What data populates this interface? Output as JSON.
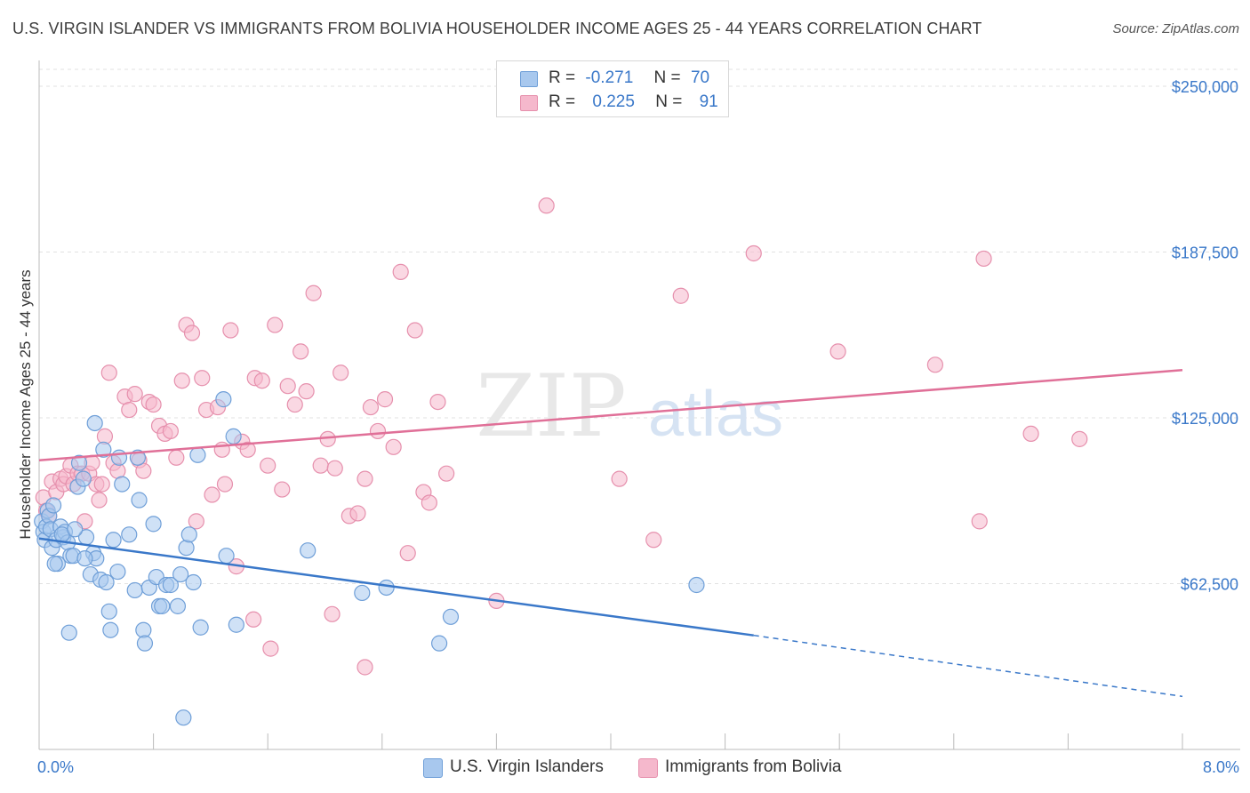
{
  "title": "U.S. VIRGIN ISLANDER VS IMMIGRANTS FROM BOLIVIA HOUSEHOLDER INCOME AGES 25 - 44 YEARS CORRELATION CHART",
  "source": "Source: ZipAtlas.com",
  "watermark": {
    "zip": "ZIP",
    "atlas": "atlas"
  },
  "legend_top": {
    "row1": {
      "r_label": "R =",
      "r_value": "-0.271",
      "n_label": "N =",
      "n_value": "70"
    },
    "row2": {
      "r_label": "R =",
      "r_value": "0.225",
      "n_label": "N =",
      "n_value": "91"
    }
  },
  "legend_bottom": {
    "series1": "U.S. Virgin Islanders",
    "series2": "Immigrants from Bolivia"
  },
  "colors": {
    "blue": "#3a78c9",
    "blue_fill": "#a8c8ee",
    "pink": "#e07098",
    "pink_fill": "#f5b8cc"
  },
  "chart_data": {
    "type": "scatter",
    "title": "U.S. VIRGIN ISLANDER VS IMMIGRANTS FROM BOLIVIA HOUSEHOLDER INCOME AGES 25 - 44 YEARS CORRELATION CHART",
    "xlabel": "",
    "ylabel": "Householder Income Ages 25 - 44 years",
    "xlim": [
      0,
      8.0
    ],
    "ylim": [
      0,
      250000
    ],
    "x_tick_labels": [
      "0.0%",
      "8.0%"
    ],
    "y_ticks": [
      62500,
      125000,
      187500,
      250000
    ],
    "y_tick_labels": [
      "$62,500",
      "$125,000",
      "$187,500",
      "$250,000"
    ],
    "series": [
      {
        "name": "U.S. Virgin Islanders",
        "color": "blue",
        "r": -0.271,
        "n": 70,
        "trend": {
          "x_start": 0.0,
          "y_start": 79500,
          "x_solid_end": 5.0,
          "y_solid_end": 43000,
          "x_end": 8.0,
          "y_end": 20000
        },
        "points": [
          [
            0.02,
            86000
          ],
          [
            0.03,
            82000
          ],
          [
            0.04,
            79000
          ],
          [
            0.05,
            84000
          ],
          [
            0.06,
            90000
          ],
          [
            0.07,
            88000
          ],
          [
            0.08,
            83000
          ],
          [
            0.09,
            76000
          ],
          [
            0.1,
            92000
          ],
          [
            0.12,
            79000
          ],
          [
            0.13,
            70000
          ],
          [
            0.15,
            84000
          ],
          [
            0.17,
            80000
          ],
          [
            0.18,
            82000
          ],
          [
            0.2,
            78000
          ],
          [
            0.22,
            73000
          ],
          [
            0.24,
            73000
          ],
          [
            0.27,
            99000
          ],
          [
            0.28,
            108000
          ],
          [
            0.31,
            102000
          ],
          [
            0.33,
            80000
          ],
          [
            0.36,
            66000
          ],
          [
            0.38,
            74000
          ],
          [
            0.4,
            72000
          ],
          [
            0.43,
            64000
          ],
          [
            0.45,
            113000
          ],
          [
            0.47,
            63000
          ],
          [
            0.49,
            52000
          ],
          [
            0.52,
            79000
          ],
          [
            0.55,
            67000
          ],
          [
            0.58,
            100000
          ],
          [
            0.63,
            81000
          ],
          [
            0.67,
            60000
          ],
          [
            0.69,
            110000
          ],
          [
            0.7,
            94000
          ],
          [
            0.73,
            45000
          ],
          [
            0.74,
            40000
          ],
          [
            0.77,
            61000
          ],
          [
            0.8,
            85000
          ],
          [
            0.82,
            65000
          ],
          [
            0.84,
            54000
          ],
          [
            0.86,
            54000
          ],
          [
            0.89,
            62000
          ],
          [
            0.92,
            62000
          ],
          [
            0.97,
            54000
          ],
          [
            0.99,
            66000
          ],
          [
            1.01,
            12000
          ],
          [
            1.03,
            76000
          ],
          [
            1.05,
            81000
          ],
          [
            1.08,
            63000
          ],
          [
            1.11,
            111000
          ],
          [
            1.13,
            46000
          ],
          [
            1.29,
            132000
          ],
          [
            1.31,
            73000
          ],
          [
            1.36,
            118000
          ],
          [
            1.38,
            47000
          ],
          [
            1.88,
            75000
          ],
          [
            2.26,
            59000
          ],
          [
            2.43,
            61000
          ],
          [
            2.8,
            40000
          ],
          [
            2.88,
            50000
          ],
          [
            4.6,
            62000
          ],
          [
            0.39,
            123000
          ],
          [
            0.56,
            110000
          ],
          [
            0.21,
            44000
          ],
          [
            0.32,
            72000
          ],
          [
            0.16,
            81000
          ],
          [
            0.11,
            70000
          ],
          [
            0.5,
            45000
          ],
          [
            0.25,
            83000
          ]
        ]
      },
      {
        "name": "Immigrants from Bolivia",
        "color": "pink",
        "r": 0.225,
        "n": 91,
        "trend": {
          "x_start": 0.0,
          "y_start": 109000,
          "x_end": 8.0,
          "y_end": 143000
        },
        "points": [
          [
            0.03,
            95000
          ],
          [
            0.05,
            90000
          ],
          [
            0.07,
            88000
          ],
          [
            0.09,
            101000
          ],
          [
            0.12,
            97000
          ],
          [
            0.15,
            102000
          ],
          [
            0.17,
            100000
          ],
          [
            0.19,
            103000
          ],
          [
            0.22,
            107000
          ],
          [
            0.24,
            100000
          ],
          [
            0.27,
            104000
          ],
          [
            0.3,
            104000
          ],
          [
            0.32,
            86000
          ],
          [
            0.35,
            104000
          ],
          [
            0.37,
            108000
          ],
          [
            0.4,
            100000
          ],
          [
            0.42,
            94000
          ],
          [
            0.44,
            100000
          ],
          [
            0.46,
            118000
          ],
          [
            0.49,
            142000
          ],
          [
            0.52,
            108000
          ],
          [
            0.55,
            105000
          ],
          [
            0.6,
            133000
          ],
          [
            0.63,
            128000
          ],
          [
            0.67,
            134000
          ],
          [
            0.7,
            109000
          ],
          [
            0.73,
            105000
          ],
          [
            0.77,
            131000
          ],
          [
            0.8,
            130000
          ],
          [
            0.84,
            122000
          ],
          [
            0.88,
            119000
          ],
          [
            0.92,
            120000
          ],
          [
            0.96,
            110000
          ],
          [
            1.0,
            139000
          ],
          [
            1.03,
            160000
          ],
          [
            1.07,
            157000
          ],
          [
            1.1,
            86000
          ],
          [
            1.14,
            140000
          ],
          [
            1.17,
            128000
          ],
          [
            1.21,
            96000
          ],
          [
            1.25,
            129000
          ],
          [
            1.3,
            100000
          ],
          [
            1.34,
            158000
          ],
          [
            1.38,
            69000
          ],
          [
            1.42,
            116000
          ],
          [
            1.46,
            113000
          ],
          [
            1.51,
            140000
          ],
          [
            1.56,
            139000
          ],
          [
            1.6,
            107000
          ],
          [
            1.65,
            160000
          ],
          [
            1.7,
            98000
          ],
          [
            1.74,
            137000
          ],
          [
            1.79,
            130000
          ],
          [
            1.83,
            150000
          ],
          [
            1.87,
            135000
          ],
          [
            1.92,
            172000
          ],
          [
            1.97,
            107000
          ],
          [
            2.02,
            117000
          ],
          [
            2.07,
            106000
          ],
          [
            2.11,
            142000
          ],
          [
            2.17,
            88000
          ],
          [
            2.23,
            89000
          ],
          [
            2.28,
            102000
          ],
          [
            2.32,
            129000
          ],
          [
            2.37,
            120000
          ],
          [
            2.42,
            132000
          ],
          [
            2.48,
            114000
          ],
          [
            2.53,
            180000
          ],
          [
            2.58,
            74000
          ],
          [
            2.63,
            158000
          ],
          [
            2.69,
            97000
          ],
          [
            2.73,
            93000
          ],
          [
            2.79,
            131000
          ],
          [
            2.85,
            104000
          ],
          [
            3.2,
            56000
          ],
          [
            3.55,
            205000
          ],
          [
            4.06,
            102000
          ],
          [
            4.3,
            79000
          ],
          [
            4.49,
            171000
          ],
          [
            5.0,
            187000
          ],
          [
            5.59,
            150000
          ],
          [
            6.27,
            145000
          ],
          [
            6.58,
            86000
          ],
          [
            6.61,
            185000
          ],
          [
            6.94,
            119000
          ],
          [
            7.28,
            117000
          ],
          [
            1.5,
            49000
          ],
          [
            1.62,
            38000
          ],
          [
            2.05,
            51000
          ],
          [
            2.28,
            31000
          ],
          [
            1.28,
            113000
          ]
        ]
      }
    ]
  }
}
